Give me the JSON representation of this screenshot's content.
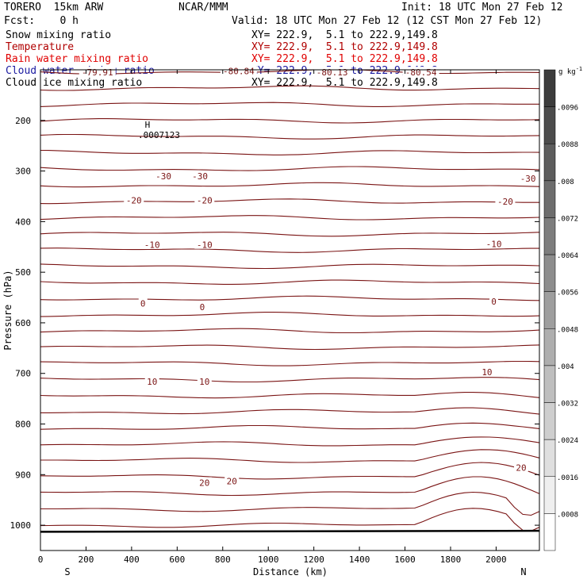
{
  "header": {
    "model": "TORERO  15km ARW",
    "org": "NCAR/MMM",
    "init": "Init: 18 UTC Mon 27 Feb 12",
    "fcst": "Fcst:    0 h",
    "valid": "Valid: 18 UTC Mon 27 Feb 12 (12 CST Mon 27 Feb 12)"
  },
  "fields": [
    {
      "name": "Snow mixing ratio",
      "xy": "XY= 222.9,  5.1 to 222.9,149.8",
      "name_color": "#000000",
      "xy_color": "#000000"
    },
    {
      "name": "Temperature",
      "xy": "XY= 222.9,  5.1 to 222.9,149.8",
      "name_color": "#b00000",
      "xy_color": "#b00000"
    },
    {
      "name": "Rain water mixing ratio",
      "xy": "XY= 222.9,  5.1 to 222.9,149.8",
      "name_color": "#e00000",
      "xy_color": "#e00000"
    },
    {
      "name": "Cloud water mixing ratio",
      "xy": "XY= 222.9,  5.1 to 222.9,149.8",
      "name_color": "#1a1aa0",
      "xy_color": "#1a1aa0"
    },
    {
      "name": "Cloud ice mixing ratio",
      "xy": "XY= 222.9,  5.1 to 222.9,149.8",
      "name_color": "#000000",
      "xy_color": "#000000"
    }
  ],
  "colors": {
    "contour": "#7a1414",
    "axis": "#000000"
  },
  "chart_data": {
    "type": "contour",
    "xlabel": "Distance (km)",
    "ylabel": "Pressure (hPa)",
    "xlim": [
      0,
      2190
    ],
    "ylim": [
      1050,
      100
    ],
    "x_ticks": [
      0,
      200,
      400,
      600,
      800,
      1000,
      1200,
      1400,
      1600,
      1800,
      2000
    ],
    "y_ticks": [
      200,
      300,
      400,
      500,
      600,
      700,
      800,
      900,
      1000
    ],
    "x_start_label": "S",
    "x_end_label": "N",
    "temperature_contour_labels": [
      {
        "text": "-80.84",
        "x": 870,
        "p": 102
      },
      {
        "text": "-79.91",
        "x": 250,
        "p": 105
      },
      {
        "text": "-80.13",
        "x": 1280,
        "p": 105
      },
      {
        "text": "-80.54",
        "x": 1670,
        "p": 105
      },
      {
        "text": "-30",
        "x": 540,
        "p": 310
      },
      {
        "text": "-30",
        "x": 700,
        "p": 310
      },
      {
        "text": "-30",
        "x": 2140,
        "p": 315
      },
      {
        "text": "-20",
        "x": 410,
        "p": 358
      },
      {
        "text": "-20",
        "x": 720,
        "p": 358
      },
      {
        "text": "-20",
        "x": 2040,
        "p": 360
      },
      {
        "text": "-10",
        "x": 490,
        "p": 446
      },
      {
        "text": "-10",
        "x": 720,
        "p": 446
      },
      {
        "text": "-10",
        "x": 1990,
        "p": 444
      },
      {
        "text": "0",
        "x": 450,
        "p": 562
      },
      {
        "text": "0",
        "x": 710,
        "p": 569
      },
      {
        "text": "0",
        "x": 1990,
        "p": 558
      },
      {
        "text": "10",
        "x": 490,
        "p": 716
      },
      {
        "text": "10",
        "x": 720,
        "p": 716
      },
      {
        "text": "10",
        "x": 1960,
        "p": 697
      },
      {
        "text": "20",
        "x": 720,
        "p": 916
      },
      {
        "text": "20",
        "x": 840,
        "p": 913
      },
      {
        "text": "20",
        "x": 2110,
        "p": 886
      }
    ],
    "high_marker": {
      "symbol": "H",
      "value": ".0007123",
      "x": 470,
      "p": 208
    },
    "colorbar": {
      "unit": "g kg",
      "unit_exp": "-1",
      "labels": [
        ".0096",
        ".0088",
        ".008",
        ".0072",
        ".0064",
        ".0056",
        ".0048",
        ".004",
        ".0032",
        ".0024",
        ".0016",
        ".0008"
      ]
    }
  }
}
